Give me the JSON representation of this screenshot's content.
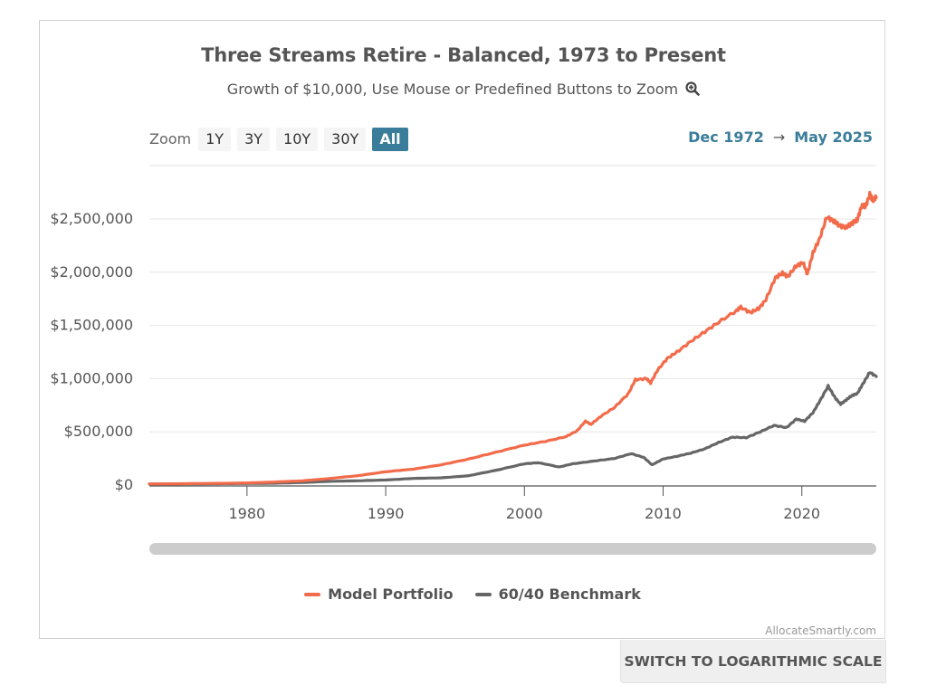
{
  "header": {
    "title": "Three Streams Retire - Balanced, 1973 to Present",
    "subtitle": "Growth of $10,000, Use Mouse or Predefined Buttons to Zoom",
    "subtitle_icon": "zoom-in-icon"
  },
  "zoom": {
    "label": "Zoom",
    "buttons": [
      "1Y",
      "3Y",
      "10Y",
      "30Y",
      "All"
    ],
    "active": "All"
  },
  "range": {
    "from": "Dec 1972",
    "arrow": "→",
    "to": "May 2025"
  },
  "colors": {
    "model": "#f26b4a",
    "benchmark": "#666666",
    "accent": "#3a7d9a"
  },
  "legend": {
    "model_label": "Model Portfolio",
    "benchmark_label": "60/40 Benchmark"
  },
  "credit": "AllocateSmartly.com",
  "log_button": "SWITCH TO LOGARITHMIC SCALE",
  "chart_data": {
    "type": "line",
    "title": "Three Streams Retire - Balanced, 1973 to Present",
    "subtitle": "Growth of $10,000",
    "xlabel": "",
    "ylabel": "",
    "xlim": [
      1972.96,
      2025.37
    ],
    "ylim": [
      0,
      2750000
    ],
    "x_ticks": [
      1980,
      1990,
      2000,
      2010,
      2020
    ],
    "x_tick_labels": [
      "1980",
      "1990",
      "2000",
      "2010",
      "2020"
    ],
    "y_ticks": [
      0,
      500000,
      1000000,
      1500000,
      2000000,
      2500000
    ],
    "y_tick_labels": [
      "$0",
      "$500,000",
      "$1,000,000",
      "$1,500,000",
      "$2,000,000",
      "$2,500,000"
    ],
    "grid": true,
    "legend_position": "bottom-center",
    "series": [
      {
        "name": "Model Portfolio",
        "color": "#f26b4a",
        "points": [
          [
            1972.96,
            10000
          ],
          [
            1975,
            12000
          ],
          [
            1978,
            16000
          ],
          [
            1980,
            20000
          ],
          [
            1982,
            28000
          ],
          [
            1984,
            40000
          ],
          [
            1986,
            62000
          ],
          [
            1988,
            88000
          ],
          [
            1990,
            125000
          ],
          [
            1992,
            150000
          ],
          [
            1994,
            190000
          ],
          [
            1996,
            245000
          ],
          [
            1998,
            310000
          ],
          [
            2000,
            375000
          ],
          [
            2001.5,
            410000
          ],
          [
            2003,
            455000
          ],
          [
            2003.8,
            510000
          ],
          [
            2004.4,
            600000
          ],
          [
            2004.8,
            570000
          ],
          [
            2005.5,
            645000
          ],
          [
            2006.5,
            730000
          ],
          [
            2007.5,
            860000
          ],
          [
            2008,
            990000
          ],
          [
            2008.8,
            1000000
          ],
          [
            2009.1,
            960000
          ],
          [
            2009.6,
            1080000
          ],
          [
            2010.3,
            1190000
          ],
          [
            2011,
            1250000
          ],
          [
            2012,
            1350000
          ],
          [
            2013,
            1440000
          ],
          [
            2014,
            1530000
          ],
          [
            2015.3,
            1640000
          ],
          [
            2015.6,
            1670000
          ],
          [
            2016.3,
            1620000
          ],
          [
            2016.9,
            1660000
          ],
          [
            2017.4,
            1740000
          ],
          [
            2018.1,
            1950000
          ],
          [
            2018.6,
            1990000
          ],
          [
            2019,
            1960000
          ],
          [
            2019.6,
            2060000
          ],
          [
            2020.1,
            2090000
          ],
          [
            2020.4,
            1980000
          ],
          [
            2020.8,
            2180000
          ],
          [
            2021.3,
            2320000
          ],
          [
            2021.8,
            2520000
          ],
          [
            2022.3,
            2480000
          ],
          [
            2022.7,
            2440000
          ],
          [
            2023.2,
            2420000
          ],
          [
            2023.6,
            2460000
          ],
          [
            2024.0,
            2490000
          ],
          [
            2024.3,
            2620000
          ],
          [
            2024.6,
            2620000
          ],
          [
            2024.9,
            2730000
          ],
          [
            2025.1,
            2680000
          ],
          [
            2025.37,
            2700000
          ]
        ]
      },
      {
        "name": "60/40 Benchmark",
        "color": "#666666",
        "points": [
          [
            1972.96,
            10000
          ],
          [
            1975,
            10500
          ],
          [
            1978,
            13000
          ],
          [
            1980,
            15000
          ],
          [
            1982,
            17000
          ],
          [
            1984,
            24000
          ],
          [
            1986,
            35000
          ],
          [
            1988,
            40000
          ],
          [
            1990,
            48000
          ],
          [
            1992,
            62000
          ],
          [
            1994,
            68000
          ],
          [
            1996,
            88000
          ],
          [
            1998,
            140000
          ],
          [
            2000,
            200000
          ],
          [
            2001,
            210000
          ],
          [
            2002.5,
            170000
          ],
          [
            2003.5,
            200000
          ],
          [
            2005,
            225000
          ],
          [
            2006.5,
            250000
          ],
          [
            2007.7,
            295000
          ],
          [
            2008.6,
            260000
          ],
          [
            2009.2,
            190000
          ],
          [
            2010,
            245000
          ],
          [
            2011,
            270000
          ],
          [
            2012,
            300000
          ],
          [
            2013,
            340000
          ],
          [
            2014,
            400000
          ],
          [
            2015,
            450000
          ],
          [
            2016,
            445000
          ],
          [
            2017,
            500000
          ],
          [
            2018,
            560000
          ],
          [
            2018.9,
            540000
          ],
          [
            2019.6,
            620000
          ],
          [
            2020.2,
            600000
          ],
          [
            2020.8,
            680000
          ],
          [
            2021.3,
            790000
          ],
          [
            2021.9,
            930000
          ],
          [
            2022.4,
            820000
          ],
          [
            2022.8,
            760000
          ],
          [
            2023.2,
            800000
          ],
          [
            2023.6,
            840000
          ],
          [
            2024.0,
            860000
          ],
          [
            2024.4,
            950000
          ],
          [
            2024.9,
            1060000
          ],
          [
            2025.37,
            1020000
          ]
        ]
      }
    ]
  }
}
